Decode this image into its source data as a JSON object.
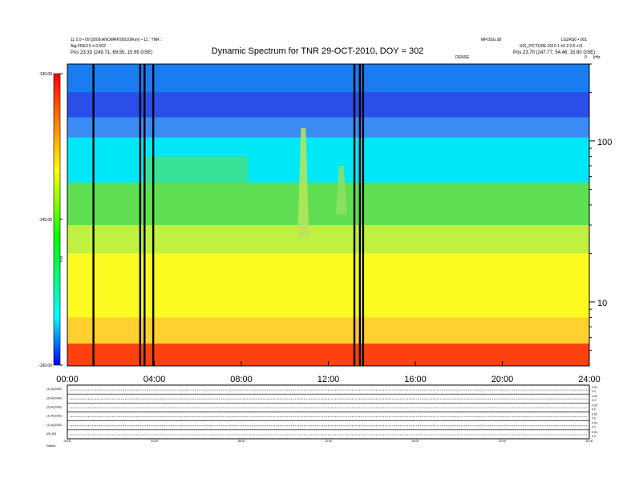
{
  "header": {
    "title": "Dynamic Spectrum for TNR 29-OCT-2010, DOY = 302",
    "left_line1": "11 0.0 • 09 [2009:ANOMRP20010(Kev) • 11 : TNR ::",
    "left_line2": "Alg-FRE0 5 ± 0.002",
    "left_line3": "Pos 23.33 (249.71, 69.55, 15.99 GSE)",
    "right_top_a": "MFOSG.d0",
    "right_top_b": "LG2RS0 • 001",
    "right_line2": "SIG_PICTURE 2010 1 ±0 2:2:0 ±11",
    "right_line3": "Pos 23.70 (247.77, 54.46, 15.80 GSE)",
    "small_mid": "DENSE",
    "small_right_a": "0",
    "small_right_b": "kHz"
  },
  "colorbar": {
    "ticks": [
      "-130.00",
      "-145.00",
      "-160.00"
    ],
    "label": "TNR"
  },
  "chart_data": {
    "type": "heatmap",
    "title": "Dynamic Spectrum for TNR 29-OCT-2010, DOY = 302",
    "xlabel": "",
    "ylabel": "",
    "x_ticks": [
      "00:00",
      "04:00",
      "08:00",
      "12:00",
      "16:00",
      "20:00",
      "24:00"
    ],
    "xlim_hours": [
      0,
      24
    ],
    "y_scale": "log",
    "y_ticks": [
      "100",
      "10"
    ],
    "y_unit": "kHz",
    "ylim_khz": [
      4,
      300
    ],
    "color_scale": {
      "min": -160.0,
      "max": -130.0,
      "ticks": [
        -130.0,
        -145.0,
        -160.0
      ]
    },
    "color_stops": [
      {
        "value": -160.0,
        "color": "#0000ff"
      },
      {
        "value": -155.0,
        "color": "#00ffff"
      },
      {
        "value": -147.0,
        "color": "#00ff00"
      },
      {
        "value": -140.0,
        "color": "#ffff00"
      },
      {
        "value": -130.0,
        "color": "#ff0000"
      }
    ],
    "spectral_bands": [
      {
        "from_khz": 300,
        "to_khz": 200,
        "color": "#1a7cf0"
      },
      {
        "from_khz": 200,
        "to_khz": 140,
        "color": "#2a4ee8"
      },
      {
        "from_khz": 140,
        "to_khz": 105,
        "color": "#3a8cf4"
      },
      {
        "from_khz": 105,
        "to_khz": 55,
        "color": "#00e8f8"
      },
      {
        "from_khz": 55,
        "to_khz": 30,
        "color": "#60e050"
      },
      {
        "from_khz": 30,
        "to_khz": 20,
        "color": "#c0f040"
      },
      {
        "from_khz": 20,
        "to_khz": 8,
        "color": "#fbfb22"
      },
      {
        "from_khz": 8,
        "to_khz": 5.5,
        "color": "#ffd030"
      },
      {
        "from_khz": 5.5,
        "to_khz": 4,
        "color": "#ff4010"
      }
    ],
    "data_gaps_hours": [
      1.2,
      3.35,
      3.55,
      3.95,
      13.2,
      13.45,
      13.6
    ],
    "features": [
      {
        "type": "emission",
        "start_hour": 3.6,
        "end_hour": 8.3,
        "top_khz": 80,
        "bottom_khz": 55,
        "color": "#4be07a"
      },
      {
        "type": "burst",
        "center_hour": 10.85,
        "top_khz": 120,
        "bottom_khz": 25,
        "color": "#b8e55a"
      },
      {
        "type": "burst",
        "center_hour": 12.6,
        "top_khz": 70,
        "bottom_khz": 35,
        "color": "#8ee060"
      }
    ],
    "subpanels": {
      "row_labels": [
        "(4) A(GSE)",
        "(3) A(GSE)",
        "(2) A(GSE)",
        "(1) A(GSE)",
        "(1) A(GSE)",
        "(R) (R)",
        "Status"
      ],
      "right_ticks": [
        [
          "0.00",
          "0.0"
        ],
        [
          "0.00",
          "0.0"
        ],
        [
          "0.00",
          "0.0"
        ],
        [
          "0.00",
          "0.0"
        ],
        [
          "0.00",
          "0.0"
        ],
        [
          "0.00",
          "0.0"
        ]
      ],
      "time_ticks": [
        "00:00",
        "04:00",
        "08:00",
        "12:00",
        "16:00",
        "20:00",
        "24:00"
      ],
      "footer": "Status  dB"
    }
  }
}
